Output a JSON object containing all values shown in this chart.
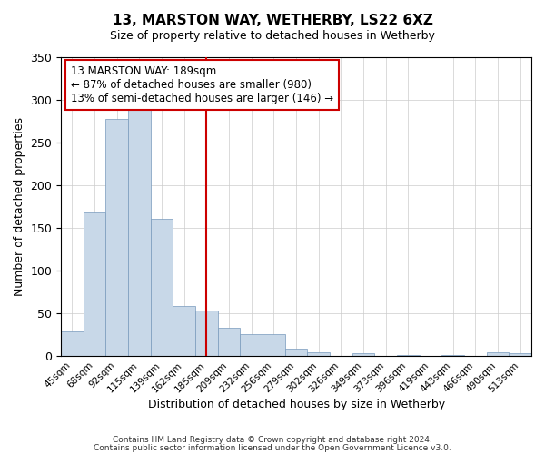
{
  "title": "13, MARSTON WAY, WETHERBY, LS22 6XZ",
  "subtitle": "Size of property relative to detached houses in Wetherby",
  "xlabel": "Distribution of detached houses by size in Wetherby",
  "ylabel": "Number of detached properties",
  "footnote1": "Contains HM Land Registry data © Crown copyright and database right 2024.",
  "footnote2": "Contains public sector information licensed under the Open Government Licence v3.0.",
  "bar_labels": [
    "45sqm",
    "68sqm",
    "92sqm",
    "115sqm",
    "139sqm",
    "162sqm",
    "185sqm",
    "209sqm",
    "232sqm",
    "256sqm",
    "279sqm",
    "302sqm",
    "326sqm",
    "349sqm",
    "373sqm",
    "396sqm",
    "419sqm",
    "443sqm",
    "466sqm",
    "490sqm",
    "513sqm"
  ],
  "bar_values": [
    29,
    168,
    277,
    288,
    161,
    59,
    53,
    33,
    26,
    26,
    9,
    5,
    0,
    3,
    0,
    1,
    0,
    1,
    0,
    4,
    3
  ],
  "bar_color": "#c8d8e8",
  "bar_edge_color": "#7799bb",
  "vline_x": 6,
  "vline_color": "#cc0000",
  "ylim": [
    0,
    350
  ],
  "yticks": [
    0,
    50,
    100,
    150,
    200,
    250,
    300,
    350
  ],
  "annotation_title": "13 MARSTON WAY: 189sqm",
  "annotation_line1": "← 87% of detached houses are smaller (980)",
  "annotation_line2": "13% of semi-detached houses are larger (146) →",
  "annotation_box_color": "#ffffff",
  "annotation_border_color": "#cc0000",
  "background_color": "#ffffff",
  "grid_color": "#cccccc"
}
